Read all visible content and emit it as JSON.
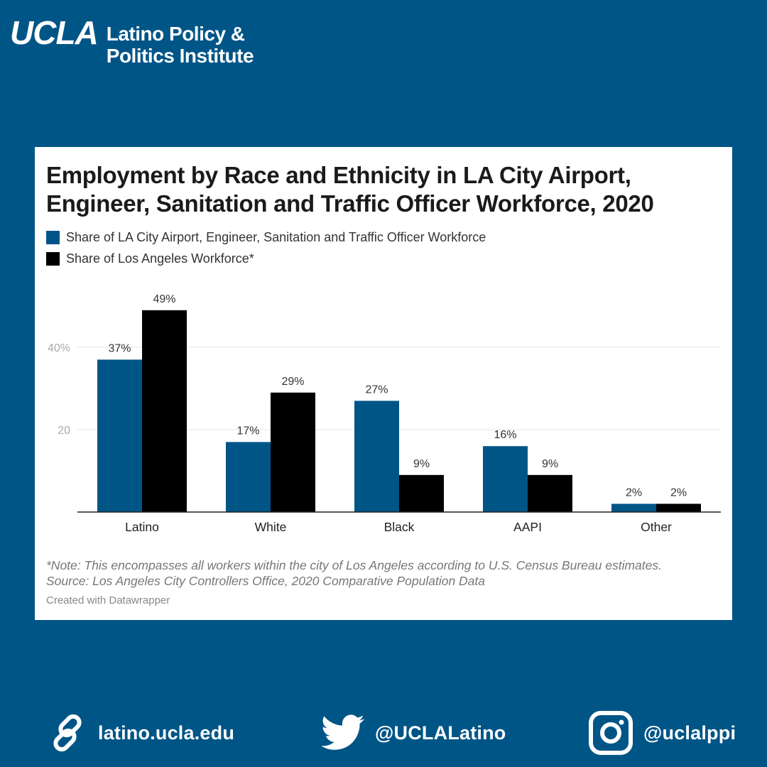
{
  "brand": {
    "logo": "UCLA",
    "institute_line1": "Latino Policy &",
    "institute_line2": "Politics Institute"
  },
  "chart_data": {
    "type": "bar",
    "title": "Employment by Race and Ethnicity in LA City Airport, Engineer, Sanitation and Traffic Officer Workforce, 2020",
    "categories": [
      "Latino",
      "White",
      "Black",
      "AAPI",
      "Other"
    ],
    "series": [
      {
        "name": "Share of LA City Airport, Engineer, Sanitation and Traffic Officer Workforce",
        "values": [
          37,
          17,
          27,
          16,
          2
        ],
        "labels": [
          "37%",
          "17%",
          "27%",
          "16%",
          "2%"
        ],
        "color": "#005587"
      },
      {
        "name": "Share of Los Angeles Workforce*",
        "values": [
          49,
          29,
          9,
          9,
          2
        ],
        "labels": [
          "49%",
          "29%",
          "9%",
          "9%",
          "2%"
        ],
        "color": "#000000"
      }
    ],
    "yticks": [
      {
        "value": 20,
        "label": "20"
      },
      {
        "value": 40,
        "label": "40%"
      }
    ],
    "ylim": [
      0,
      50
    ],
    "grid": true,
    "legend_position": "top-left"
  },
  "note": "*Note: This encompasses all workers within the city of Los Angeles according to U.S. Census Bureau estimates.",
  "source": "Source: Los Angeles City Controllers Office, 2020 Comparative Population Data",
  "credit": "Created with Datawrapper",
  "footer": {
    "website": "latino.ucla.edu",
    "twitter": "@UCLALatino",
    "instagram": "@uclalppi",
    "icons": [
      "link-icon",
      "twitter-bird-icon",
      "instagram-icon"
    ]
  }
}
